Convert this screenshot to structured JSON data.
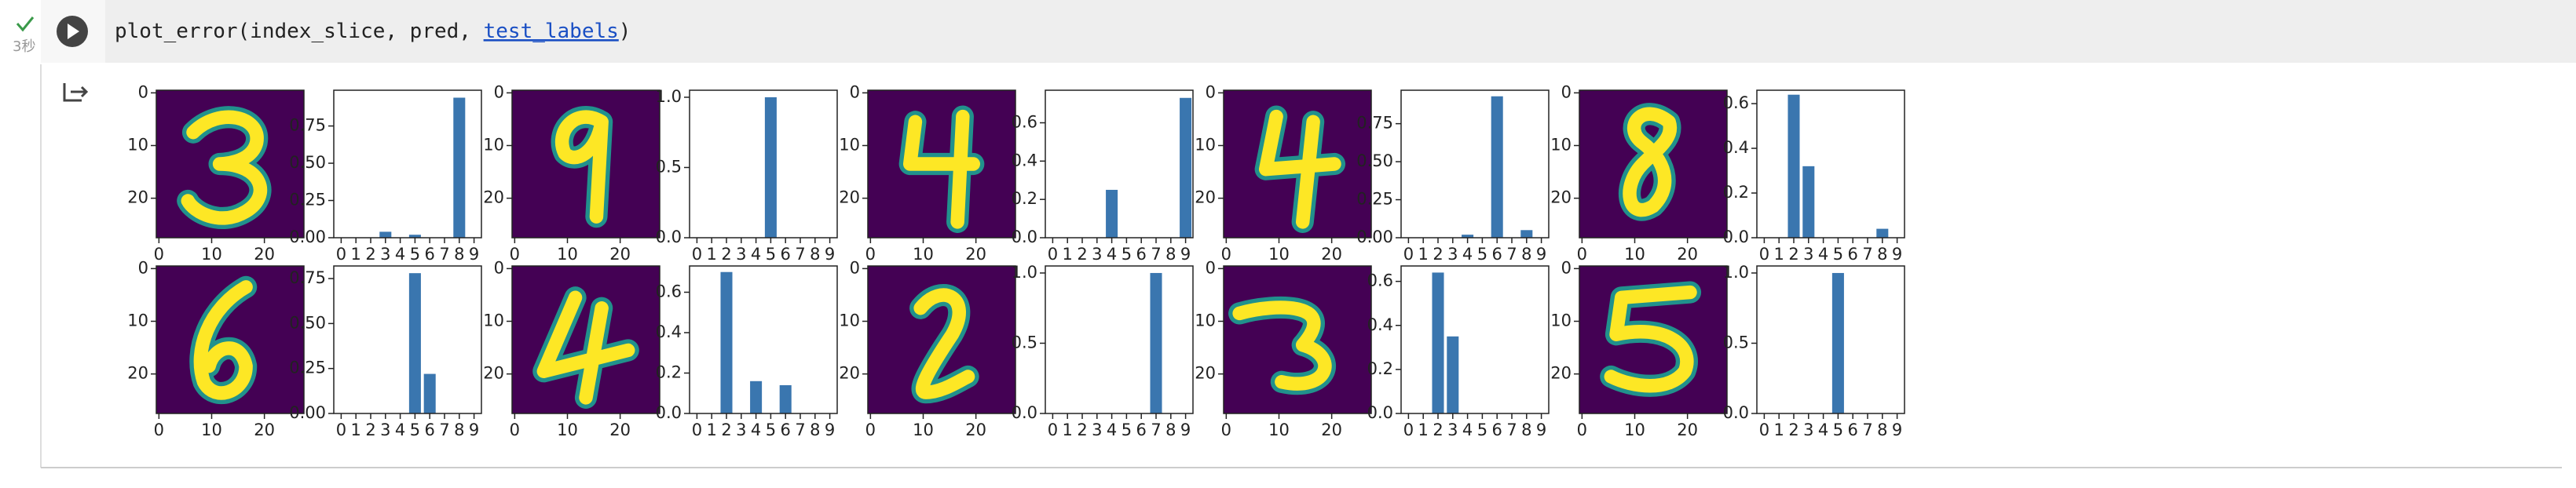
{
  "cell": {
    "code_parts": [
      "plot_error(index_slice, pred, ",
      "test_labels",
      ")"
    ],
    "exec_time": "3秒"
  },
  "chart_data": [
    {
      "type": "image",
      "xlim": [
        -0.5,
        27.5
      ],
      "ylim": [
        27.5,
        -0.5
      ],
      "xticks": [
        0,
        10,
        20
      ],
      "yticks": [
        0,
        10,
        20
      ]
    },
    {
      "type": "bar",
      "categories": [
        "0",
        "1",
        "2",
        "3",
        "4",
        "5",
        "6",
        "7",
        "8",
        "9"
      ],
      "values": [
        0,
        0,
        0,
        0.04,
        0,
        0.02,
        0,
        0,
        0.94,
        0
      ],
      "color": "#3a76af",
      "ylim": [
        0,
        0.99
      ],
      "yticks": [
        {
          "value": 0,
          "label": "0.00"
        },
        {
          "value": 0.25,
          "label": "0.25"
        },
        {
          "value": 0.5,
          "label": "0.50"
        },
        {
          "value": 0.75,
          "label": "0.75"
        }
      ]
    },
    {
      "type": "image",
      "xlim": [
        -0.5,
        27.5
      ],
      "ylim": [
        27.5,
        -0.5
      ],
      "xticks": [
        0,
        10,
        20
      ],
      "yticks": [
        0,
        10,
        20
      ]
    },
    {
      "type": "bar",
      "categories": [
        "0",
        "1",
        "2",
        "3",
        "4",
        "5",
        "6",
        "7",
        "8",
        "9"
      ],
      "values": [
        0,
        0,
        0,
        0,
        0,
        1.0,
        0,
        0,
        0,
        0
      ],
      "color": "#3a76af",
      "ylim": [
        0,
        1.05
      ],
      "yticks": [
        {
          "value": 0,
          "label": "0.0"
        },
        0.5,
        {
          "value": 1,
          "label": "1.0"
        }
      ]
    },
    {
      "type": "image",
      "xlim": [
        -0.5,
        27.5
      ],
      "ylim": [
        27.5,
        -0.5
      ],
      "xticks": [
        0,
        10,
        20
      ],
      "yticks": [
        0,
        10,
        20
      ]
    },
    {
      "type": "bar",
      "categories": [
        "0",
        "1",
        "2",
        "3",
        "4",
        "5",
        "6",
        "7",
        "8",
        "9"
      ],
      "values": [
        0,
        0,
        0,
        0,
        0.25,
        0,
        0,
        0,
        0,
        0.73
      ],
      "color": "#3a76af",
      "ylim": [
        0,
        0.77
      ],
      "yticks": [
        {
          "value": 0,
          "label": "0.0"
        },
        0.2,
        0.4,
        0.6
      ]
    },
    {
      "type": "image",
      "xlim": [
        -0.5,
        27.5
      ],
      "ylim": [
        27.5,
        -0.5
      ],
      "xticks": [
        0,
        10,
        20
      ],
      "yticks": [
        0,
        10,
        20
      ]
    },
    {
      "type": "bar",
      "categories": [
        "0",
        "1",
        "2",
        "3",
        "4",
        "5",
        "6",
        "7",
        "8",
        "9"
      ],
      "values": [
        0,
        0,
        0,
        0,
        0.02,
        0,
        0.93,
        0,
        0.05,
        0
      ],
      "color": "#3a76af",
      "ylim": [
        0,
        0.97
      ],
      "yticks": [
        {
          "value": 0,
          "label": "0.00"
        },
        0.25,
        {
          "value": 0.5,
          "label": "0.50"
        },
        0.75
      ]
    },
    {
      "type": "image",
      "xlim": [
        -0.5,
        27.5
      ],
      "ylim": [
        27.5,
        -0.5
      ],
      "xticks": [
        0,
        10,
        20
      ],
      "yticks": [
        0,
        10,
        20
      ]
    },
    {
      "type": "bar",
      "categories": [
        "0",
        "1",
        "2",
        "3",
        "4",
        "5",
        "6",
        "7",
        "8",
        "9"
      ],
      "values": [
        0,
        0,
        0.64,
        0.32,
        0,
        0,
        0,
        0,
        0.04,
        0
      ],
      "color": "#3a76af",
      "ylim": [
        0,
        0.66
      ],
      "yticks": [
        {
          "value": 0,
          "label": "0.0"
        },
        0.2,
        0.4,
        0.6
      ]
    },
    {
      "type": "image",
      "xlim": [
        -0.5,
        27.5
      ],
      "ylim": [
        27.5,
        -0.5
      ],
      "xticks": [
        0,
        10,
        20
      ],
      "yticks": [
        0,
        10,
        20
      ]
    },
    {
      "type": "bar",
      "categories": [
        "0",
        "1",
        "2",
        "3",
        "4",
        "5",
        "6",
        "7",
        "8",
        "9"
      ],
      "values": [
        0,
        0,
        0,
        0,
        0,
        0.78,
        0.22,
        0,
        0,
        0
      ],
      "color": "#3a76af",
      "ylim": [
        0,
        0.82
      ],
      "yticks": [
        {
          "value": 0,
          "label": "0.00"
        },
        0.25,
        {
          "value": 0.5,
          "label": "0.50"
        },
        0.75
      ]
    },
    {
      "type": "image",
      "xlim": [
        -0.5,
        27.5
      ],
      "ylim": [
        27.5,
        -0.5
      ],
      "xticks": [
        0,
        10,
        20
      ],
      "yticks": [
        0,
        10,
        20
      ]
    },
    {
      "type": "bar",
      "categories": [
        "0",
        "1",
        "2",
        "3",
        "4",
        "5",
        "6",
        "7",
        "8",
        "9"
      ],
      "values": [
        0,
        0,
        0.7,
        0,
        0.16,
        0,
        0.14,
        0,
        0,
        0
      ],
      "color": "#3a76af",
      "ylim": [
        0,
        0.73
      ],
      "yticks": [
        {
          "value": 0,
          "label": "0.0"
        },
        0.2,
        0.4,
        0.6
      ]
    },
    {
      "type": "image",
      "xlim": [
        -0.5,
        27.5
      ],
      "ylim": [
        27.5,
        -0.5
      ],
      "xticks": [
        0,
        10,
        20
      ],
      "yticks": [
        0,
        10,
        20
      ]
    },
    {
      "type": "bar",
      "categories": [
        "0",
        "1",
        "2",
        "3",
        "4",
        "5",
        "6",
        "7",
        "8",
        "9"
      ],
      "values": [
        0,
        0,
        0,
        0,
        0,
        0,
        0,
        1.0,
        0,
        0
      ],
      "color": "#3a76af",
      "ylim": [
        0,
        1.05
      ],
      "yticks": [
        {
          "value": 0,
          "label": "0.0"
        },
        0.5,
        {
          "value": 1,
          "label": "1.0"
        }
      ]
    },
    {
      "type": "image",
      "xlim": [
        -0.5,
        27.5
      ],
      "ylim": [
        27.5,
        -0.5
      ],
      "xticks": [
        0,
        10,
        20
      ],
      "yticks": [
        0,
        10,
        20
      ]
    },
    {
      "type": "bar",
      "categories": [
        "0",
        "1",
        "2",
        "3",
        "4",
        "5",
        "6",
        "7",
        "8",
        "9"
      ],
      "values": [
        0,
        0,
        0.64,
        0.35,
        0,
        0,
        0,
        0,
        0,
        0
      ],
      "color": "#3a76af",
      "ylim": [
        0,
        0.67
      ],
      "yticks": [
        {
          "value": 0,
          "label": "0.0"
        },
        0.2,
        0.4,
        0.6
      ]
    },
    {
      "type": "image",
      "xlim": [
        -0.5,
        27.5
      ],
      "ylim": [
        27.5,
        -0.5
      ],
      "xticks": [
        0,
        10,
        20
      ],
      "yticks": [
        0,
        10,
        20
      ]
    },
    {
      "type": "bar",
      "categories": [
        "0",
        "1",
        "2",
        "3",
        "4",
        "5",
        "6",
        "7",
        "8",
        "9"
      ],
      "values": [
        0,
        0,
        0,
        0,
        0,
        1.0,
        0,
        0,
        0,
        0
      ],
      "color": "#3a76af",
      "ylim": [
        0,
        1.05
      ],
      "yticks": [
        {
          "value": 0,
          "label": "0.0"
        },
        0.5,
        {
          "value": 1,
          "label": "1.0"
        }
      ]
    }
  ]
}
